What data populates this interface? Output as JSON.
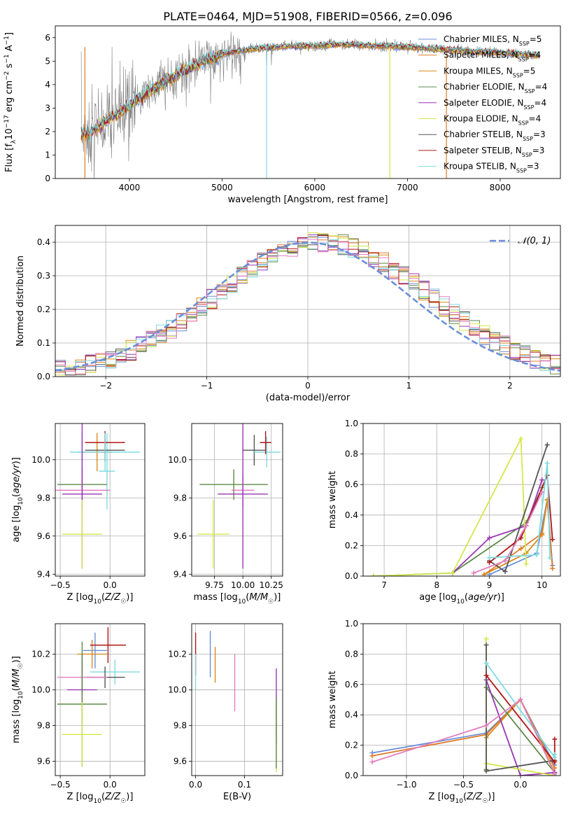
{
  "figure": {
    "title": "PLATE=0464, MJD=51908, FIBERID=0566, z=0.096"
  },
  "colors": [
    "#6a8fd9",
    "#e07b2a",
    "#d98a1a",
    "#5e8a4a",
    "#9a35b5",
    "#d4e84a",
    "#555555",
    "#b01515",
    "#7fdbe0",
    "#e27fc0",
    "#808080"
  ],
  "chart_data": [
    {
      "type": "line",
      "id": "spectrum",
      "xlabel": "wavelength [Angstrom, rest frame]",
      "ylabel": "Flux [f_λ 10^-17 erg cm^-2 s^-1 A^-1]",
      "xlim": [
        3200,
        8650
      ],
      "ylim": [
        0,
        6.5
      ],
      "xticks": [
        4000,
        5000,
        6000,
        7000,
        8000
      ],
      "yticks": [
        0,
        1,
        2,
        3,
        4,
        5,
        6
      ],
      "grid": false,
      "legend_position": "right",
      "series": [
        {
          "name": "Chabrier MILES, N_SSP=5",
          "color": "#6a8fd9"
        },
        {
          "name": "Salpeter MILES, N_SSP=4",
          "color": "#e07b2a"
        },
        {
          "name": "Kroupa MILES, N_SSP=5",
          "color": "#d98a1a"
        },
        {
          "name": "Chabrier ELODIE, N_SSP=4",
          "color": "#5e8a4a"
        },
        {
          "name": "Salpeter ELODIE, N_SSP=4",
          "color": "#9a35b5"
        },
        {
          "name": "Kroupa ELODIE, N_SSP=4",
          "color": "#d4e84a"
        },
        {
          "name": "Chabrier STELIB, N_SSP=3",
          "color": "#555555"
        },
        {
          "name": "Salpeter STELIB, N_SSP=3",
          "color": "#b01515"
        },
        {
          "name": "Kroupa STELIB, N_SSP=3",
          "color": "#7fdbe0"
        }
      ],
      "continuum": {
        "wavelength": [
          3500,
          3600,
          3700,
          3800,
          3900,
          4000,
          4100,
          4200,
          4300,
          4400,
          4500,
          4600,
          4700,
          4800,
          4900,
          5000,
          5200,
          5400,
          5600,
          5800,
          6000,
          6200,
          6400,
          6600,
          6800,
          7000,
          7200,
          7400,
          7600,
          7800,
          8000,
          8200,
          8400
        ],
        "flux": [
          1.9,
          2.0,
          2.3,
          2.6,
          2.8,
          3.1,
          3.4,
          3.7,
          3.9,
          4.2,
          4.4,
          4.6,
          4.8,
          5.0,
          5.15,
          5.3,
          5.45,
          5.55,
          5.6,
          5.65,
          5.65,
          5.7,
          5.7,
          5.65,
          5.65,
          5.6,
          5.55,
          5.5,
          5.45,
          5.4,
          5.35,
          5.3,
          5.25
        ]
      }
    },
    {
      "type": "bar",
      "id": "residuals",
      "xlabel": "(data-model)/error",
      "ylabel": "Normed distribution",
      "xlim": [
        -2.5,
        2.5
      ],
      "ylim": [
        0,
        0.45
      ],
      "xticks": [
        -2,
        -1,
        0,
        1,
        2
      ],
      "yticks": [
        0.0,
        0.1,
        0.2,
        0.3,
        0.4
      ],
      "grid": true,
      "legend_position": "top-right",
      "reference_curve": {
        "name": "𝒩(0, 1)",
        "mean": 0,
        "sigma": 1,
        "color": "#6a8fd9",
        "style": "dashed"
      },
      "bin_width": 0.1
    },
    {
      "type": "scatter",
      "id": "age-vs-Z",
      "xlabel": "Z [log₁₀(Z/Z☉)]",
      "ylabel": "age  [log₁₀(age/yr)]",
      "xlim": [
        -0.55,
        0.35
      ],
      "ylim": [
        9.39,
        10.19
      ],
      "xticks": [
        -0.5,
        0.0
      ],
      "yticks": [
        9.4,
        9.6,
        9.8,
        10.0
      ],
      "grid": true,
      "points": [
        {
          "x": -0.28,
          "y": 10.04,
          "xerr": 0.05,
          "yerr": 0.1,
          "color": "#6a8fd9"
        },
        {
          "x": -0.13,
          "y": 10.04,
          "xerr": 0.15,
          "yerr": 0.1,
          "color": "#d98a1a"
        },
        {
          "x": -0.03,
          "y": 9.94,
          "xerr": 0.08,
          "yerr": 0.2,
          "color": "#7fdbe0"
        },
        {
          "x": -0.05,
          "y": 10.09,
          "xerr": 0.2,
          "yerr": 0.06,
          "color": "#b01515"
        },
        {
          "x": -0.05,
          "y": 10.05,
          "xerr": 0.2,
          "yerr": 0.06,
          "color": "#555555"
        },
        {
          "x": -0.05,
          "y": 10.04,
          "xerr": 0.35,
          "yerr": 0.1,
          "color": "#7fdbe0"
        },
        {
          "x": -0.28,
          "y": 9.87,
          "xerr": 0.25,
          "yerr": 0.08,
          "color": "#5e8a4a"
        },
        {
          "x": -0.28,
          "y": 9.84,
          "xerr": 0.28,
          "yerr": 0.1,
          "color": "#e27fc0"
        },
        {
          "x": -0.28,
          "y": 9.82,
          "xerr": 0.2,
          "yerr": 0.39,
          "color": "#9a35b5"
        },
        {
          "x": -0.28,
          "y": 9.61,
          "xerr": 0.2,
          "yerr": 0.18,
          "color": "#d4e84a"
        }
      ]
    },
    {
      "type": "scatter",
      "id": "age-vs-mass",
      "xlabel": "mass [log₁₀(M/M☉)]",
      "ylabel": "",
      "xlim": [
        9.55,
        10.35
      ],
      "ylim": [
        9.39,
        10.19
      ],
      "xticks": [
        9.75,
        10.0,
        10.25
      ],
      "yticks": [
        9.4,
        9.6,
        9.8,
        10.0
      ],
      "grid": true,
      "points": [
        {
          "x": 10.1,
          "y": 10.05,
          "xerr": 0.1,
          "yerr": 0.08,
          "color": "#555555"
        },
        {
          "x": 10.21,
          "y": 10.04,
          "xerr": 0.12,
          "yerr": 0.08,
          "color": "#7fdbe0"
        },
        {
          "x": 10.2,
          "y": 10.09,
          "xerr": 0.05,
          "yerr": 0.06,
          "color": "#b01515"
        },
        {
          "x": 9.92,
          "y": 9.87,
          "xerr": 0.3,
          "yerr": 0.08,
          "color": "#5e8a4a"
        },
        {
          "x": 10.0,
          "y": 9.84,
          "xerr": 0.1,
          "yerr": 0.08,
          "color": "#e27fc0"
        },
        {
          "x": 10.0,
          "y": 9.82,
          "xerr": 0.22,
          "yerr": 0.39,
          "color": "#9a35b5"
        },
        {
          "x": 9.74,
          "y": 9.61,
          "xerr": 0.14,
          "yerr": 0.18,
          "color": "#d4e84a"
        }
      ]
    },
    {
      "type": "line",
      "id": "massweight-vs-age",
      "xlabel": "age  [log₁₀(age/yr)]",
      "ylabel": "mass weight",
      "xlim": [
        6.6,
        10.35
      ],
      "ylim": [
        0,
        1
      ],
      "xticks": [
        7,
        8,
        9,
        10
      ],
      "yticks": [
        0.0,
        0.2,
        0.4,
        0.6,
        0.8,
        1.0
      ],
      "grid": true,
      "series": [
        {
          "color": "#6a8fd9",
          "x": [
            9.0,
            9.9,
            10.1,
            10.2
          ],
          "y": [
            0.01,
            0.15,
            0.5,
            0.07
          ]
        },
        {
          "color": "#e07b2a",
          "x": [
            8.9,
            9.6,
            10.0,
            10.1,
            10.2
          ],
          "y": [
            0.01,
            0.18,
            0.28,
            0.5,
            0.05
          ]
        },
        {
          "color": "#d98a1a",
          "x": [
            8.9,
            9.7,
            10.0,
            10.1
          ],
          "y": [
            0.01,
            0.15,
            0.27,
            0.5
          ]
        },
        {
          "color": "#5e8a4a",
          "x": [
            6.8,
            8.3,
            9.7,
            10.0
          ],
          "y": [
            0.0,
            0.02,
            0.35,
            0.58
          ]
        },
        {
          "color": "#9a35b5",
          "x": [
            8.3,
            9.0,
            9.7,
            10.0
          ],
          "y": [
            0.02,
            0.25,
            0.33,
            0.63
          ]
        },
        {
          "color": "#d4e84a",
          "x": [
            6.8,
            8.3,
            9.6,
            9.7
          ],
          "y": [
            0.0,
            0.02,
            0.9,
            0.08
          ]
        },
        {
          "color": "#555555",
          "x": [
            9.0,
            9.3,
            10.1
          ],
          "y": [
            0.1,
            0.03,
            0.86
          ]
        },
        {
          "color": "#b01515",
          "x": [
            9.0,
            9.6,
            10.1,
            10.2
          ],
          "y": [
            0.09,
            0.25,
            0.66,
            0.24
          ]
        },
        {
          "color": "#7fdbe0",
          "x": [
            9.0,
            9.9,
            10.1,
            10.15
          ],
          "y": [
            0.12,
            0.14,
            0.74,
            0.12
          ]
        },
        {
          "color": "#e27fc0",
          "x": [
            8.7,
            9.3,
            9.7,
            10.0
          ],
          "y": [
            0.02,
            0.1,
            0.33,
            0.55
          ]
        }
      ]
    },
    {
      "type": "scatter",
      "id": "mass-vs-Z",
      "xlabel": "Z [log₁₀(Z/Z☉)]",
      "ylabel": "mass [log₁₀(M/M☉)]",
      "xlim": [
        -0.55,
        0.35
      ],
      "ylim": [
        9.52,
        10.37
      ],
      "xticks": [
        -0.5,
        0.0
      ],
      "yticks": [
        9.6,
        9.8,
        10.0,
        10.2
      ],
      "grid": true,
      "points": [
        {
          "x": -0.15,
          "y": 10.22,
          "xerr": 0.12,
          "yerr": 0.1,
          "color": "#6a8fd9"
        },
        {
          "x": -0.18,
          "y": 10.2,
          "xerr": 0.15,
          "yerr": 0.08,
          "color": "#d98a1a"
        },
        {
          "x": -0.02,
          "y": 10.25,
          "xerr": 0.18,
          "yerr": 0.1,
          "color": "#b01515"
        },
        {
          "x": 0.05,
          "y": 10.1,
          "xerr": 0.25,
          "yerr": 0.07,
          "color": "#7fdbe0"
        },
        {
          "x": -0.05,
          "y": 10.07,
          "xerr": 0.2,
          "yerr": 0.06,
          "color": "#555555"
        },
        {
          "x": -0.28,
          "y": 10.07,
          "xerr": 0.25,
          "yerr": 0.1,
          "color": "#e27fc0"
        },
        {
          "x": -0.28,
          "y": 10.0,
          "xerr": 0.15,
          "yerr": 0.2,
          "color": "#9a35b5"
        },
        {
          "x": -0.28,
          "y": 9.92,
          "xerr": 0.25,
          "yerr": 0.35,
          "color": "#5e8a4a"
        },
        {
          "x": -0.28,
          "y": 9.75,
          "xerr": 0.2,
          "yerr": 0.18,
          "color": "#d4e84a"
        }
      ]
    },
    {
      "type": "scatter",
      "id": "mass-vs-EBV",
      "xlabel": "E(B-V)",
      "ylabel": "",
      "xlim": [
        -0.008,
        0.178
      ],
      "ylim": [
        9.52,
        10.37
      ],
      "xticks": [
        0.0,
        0.1
      ],
      "yticks": [
        9.6,
        9.8,
        10.0,
        10.2
      ],
      "grid": true,
      "points": [
        {
          "x": 0.0,
          "y": 10.2,
          "xerr": 0,
          "yerr": 0.12,
          "color": "#b01515"
        },
        {
          "x": 0.0,
          "y": 10.1,
          "xerr": 0,
          "yerr": 0.1,
          "color": "#7fdbe0"
        },
        {
          "x": 0.03,
          "y": 10.2,
          "xerr": 0,
          "yerr": 0.13,
          "color": "#6a8fd9"
        },
        {
          "x": 0.04,
          "y": 10.14,
          "xerr": 0,
          "yerr": 0.1,
          "color": "#d98a1a"
        },
        {
          "x": 0.08,
          "y": 10.04,
          "xerr": 0,
          "yerr": 0.16,
          "color": "#e27fc0"
        },
        {
          "x": 0.165,
          "y": 9.91,
          "xerr": 0,
          "yerr": 0.21,
          "color": "#9a35b5"
        },
        {
          "x": 0.165,
          "y": 9.74,
          "xerr": 0,
          "yerr": 0.2,
          "color": "#d4e84a"
        },
        {
          "x": 0.165,
          "y": 9.76,
          "xerr": 0,
          "yerr": 0.2,
          "color": "#5e8a4a"
        }
      ]
    },
    {
      "type": "line",
      "id": "massweight-vs-Z",
      "xlabel": "Z [log₁₀(Z/Z☉)]",
      "ylabel": "mass weight",
      "xlim": [
        -1.38,
        0.35
      ],
      "ylim": [
        0,
        1
      ],
      "xticks": [
        -1.0,
        -0.5,
        0.0
      ],
      "yticks": [
        0.0,
        0.2,
        0.4,
        0.6,
        0.8,
        1.0
      ],
      "grid": true,
      "series": [
        {
          "color": "#6a8fd9",
          "x": [
            -1.3,
            -0.3,
            0.0,
            0.3
          ],
          "y": [
            0.15,
            0.28,
            0.5,
            0.07
          ]
        },
        {
          "color": "#e07b2a",
          "x": [
            -1.3,
            -0.3,
            0.0,
            0.3
          ],
          "y": [
            0.13,
            0.27,
            0.5,
            0.05
          ]
        },
        {
          "color": "#d98a1a",
          "x": [
            -0.3,
            0.0,
            0.3
          ],
          "y": [
            0.25,
            0.5,
            0.02
          ]
        },
        {
          "color": "#5e8a4a",
          "x": [
            -0.3,
            -0.3,
            0.3
          ],
          "y": [
            0.04,
            0.58,
            0.02
          ]
        },
        {
          "color": "#9a35b5",
          "x": [
            -0.3,
            0.0,
            0.3
          ],
          "y": [
            0.63,
            0.0,
            0.02
          ]
        },
        {
          "color": "#d4e84a",
          "x": [
            -0.3,
            -0.3,
            0.3
          ],
          "y": [
            0.9,
            0.08,
            0.0
          ]
        },
        {
          "color": "#555555",
          "x": [
            -0.3,
            -0.3,
            0.3
          ],
          "y": [
            0.86,
            0.03,
            0.1
          ]
        },
        {
          "color": "#b01515",
          "x": [
            -0.3,
            0.3,
            0.3
          ],
          "y": [
            0.66,
            0.09,
            0.24
          ]
        },
        {
          "color": "#7fdbe0",
          "x": [
            -0.3,
            0.3,
            0.3
          ],
          "y": [
            0.74,
            0.12,
            0.14
          ]
        },
        {
          "color": "#e27fc0",
          "x": [
            -1.3,
            -0.3,
            0.0,
            0.3
          ],
          "y": [
            0.09,
            0.33,
            0.5,
            0.01
          ]
        }
      ]
    }
  ]
}
